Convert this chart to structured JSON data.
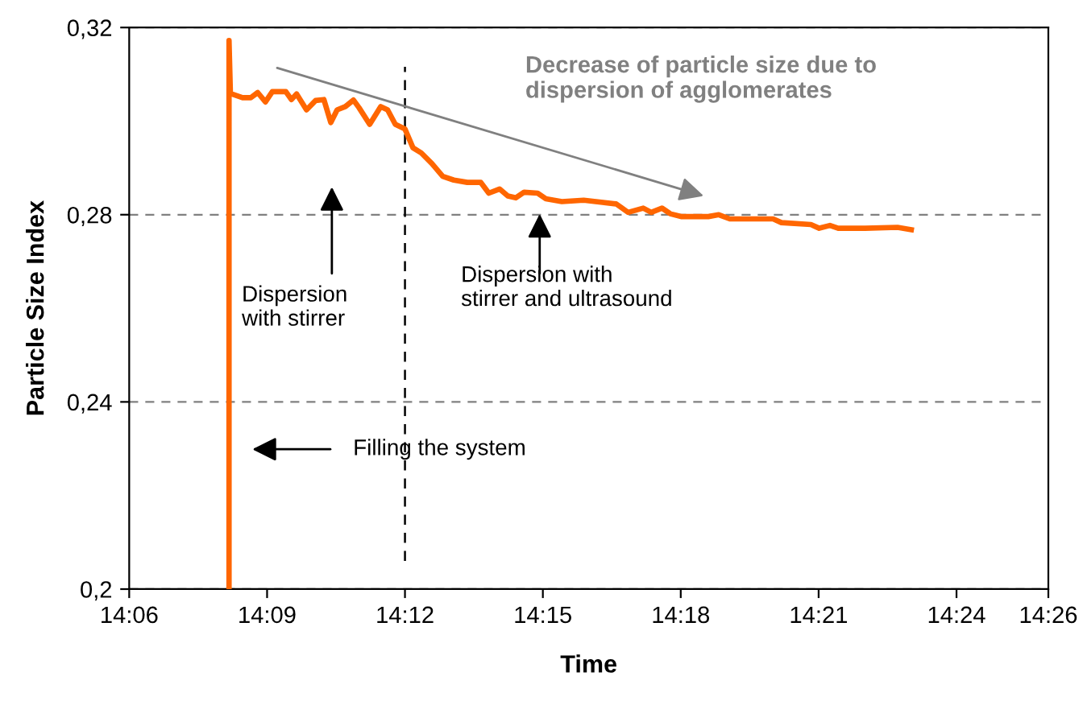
{
  "chart_data": {
    "type": "line",
    "xlabel": "Time",
    "ylabel": "Particle Size Index",
    "series": [
      {
        "color": "#ff6600",
        "x": [
          14.1362,
          14.1362,
          14.1367,
          14.1392,
          14.1411,
          14.1441,
          14.1466,
          14.1494,
          14.1519,
          14.1568,
          14.1588,
          14.1607,
          14.1643,
          14.1676,
          14.1706,
          14.1731,
          14.1754,
          14.1784,
          14.1813,
          14.1833,
          14.1872,
          14.1892,
          14.1912,
          14.1937,
          14.1965,
          14.2,
          14.2029,
          14.2059,
          14.2098,
          14.2137,
          14.2177,
          14.2226,
          14.2275,
          14.2304,
          14.2343,
          14.2373,
          14.2402,
          14.2432,
          14.2481,
          14.2511,
          14.2569,
          14.2648,
          14.2766,
          14.2809,
          14.2864,
          14.2893,
          14.2932,
          14.2962,
          14.3001,
          14.31,
          14.3138,
          14.3178,
          14.3335,
          14.3365,
          14.3472,
          14.3502,
          14.3541,
          14.3571,
          14.3668,
          14.3786,
          14.3836
        ],
        "values": [
          0.2,
          0.3172,
          0.3059,
          0.3054,
          0.305,
          0.305,
          0.3061,
          0.3041,
          0.3063,
          0.3063,
          0.3046,
          0.3058,
          0.3024,
          0.3044,
          0.3046,
          0.2997,
          0.3024,
          0.3031,
          0.3045,
          0.3029,
          0.2993,
          0.3012,
          0.3031,
          0.3024,
          0.2993,
          0.2983,
          0.2943,
          0.2932,
          0.2909,
          0.2882,
          0.2874,
          0.2869,
          0.2869,
          0.2846,
          0.2855,
          0.284,
          0.2836,
          0.2848,
          0.2846,
          0.2834,
          0.2828,
          0.2831,
          0.2823,
          0.2805,
          0.2814,
          0.2805,
          0.2814,
          0.2802,
          0.2796,
          0.2796,
          0.28,
          0.2791,
          0.2791,
          0.2783,
          0.2779,
          0.2771,
          0.2777,
          0.2771,
          0.2771,
          0.2773,
          0.2768
        ]
      }
    ],
    "xlim": [
      14.1,
      14.4333
    ],
    "xticks": [
      {
        "value": 14.1,
        "label": "14:06"
      },
      {
        "value": 14.15,
        "label": "14:09"
      },
      {
        "value": 14.2,
        "label": "14:12"
      },
      {
        "value": 14.25,
        "label": "14:15"
      },
      {
        "value": 14.3,
        "label": "14:18"
      },
      {
        "value": 14.35,
        "label": "14:21"
      },
      {
        "value": 14.4,
        "label": "14:24"
      },
      {
        "value": 14.4333,
        "label": "14:26"
      }
    ],
    "ylim": [
      0.2,
      0.32
    ],
    "yticks": [
      {
        "value": 0.2,
        "label": "0,2"
      },
      {
        "value": 0.24,
        "label": "0,24"
      },
      {
        "value": 0.28,
        "label": "0,28"
      },
      {
        "value": 0.32,
        "label": "0,32"
      }
    ],
    "grid": "y",
    "legend": false,
    "marker": "none",
    "line_style": "solid",
    "ref_lines": [
      {
        "axis": "x",
        "value": 14.2,
        "color": "#000000",
        "line_style": "dashed"
      }
    ],
    "annotations": [
      "Decrease of particle size due to\ndispersion of agglomerates",
      "Dispersion\nwith stirrer",
      "Dispersion with\nstirrer and ultrasound",
      "Filling the system"
    ]
  }
}
